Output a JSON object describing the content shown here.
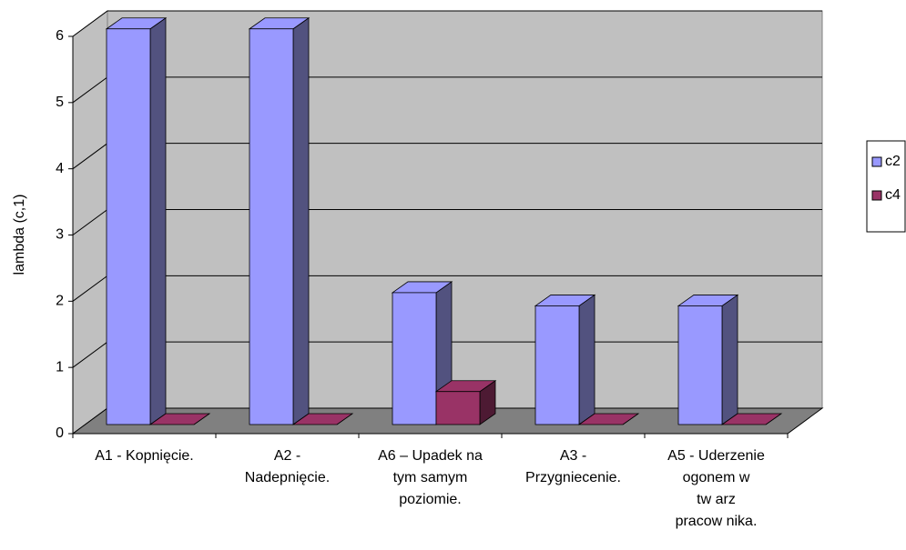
{
  "chart_data": {
    "type": "bar3d",
    "y_label": "lambda (c,1)",
    "categories": [
      "A1 - Kopnięcie.",
      "A2 -\nNadepnięcie.",
      "A6 – Upadek na\ntym samym\npoziomie.",
      "A3 -\nPrzygniecenie.",
      "A5 - Uderzenie\nogonem w\ntw arz\npracow nika."
    ],
    "series": [
      {
        "name": "c2",
        "color": "#9999ff",
        "side": "#52527f",
        "values": [
          6,
          6,
          2,
          1.8,
          1.8
        ]
      },
      {
        "name": "c4",
        "color": "#993366",
        "side": "#4d1a33",
        "values": [
          0,
          0,
          0.5,
          0,
          0
        ]
      }
    ],
    "ylim": [
      0,
      6
    ],
    "yticks": [
      0,
      1,
      2,
      3,
      4,
      5,
      6
    ],
    "grid": true,
    "legend": "right"
  }
}
